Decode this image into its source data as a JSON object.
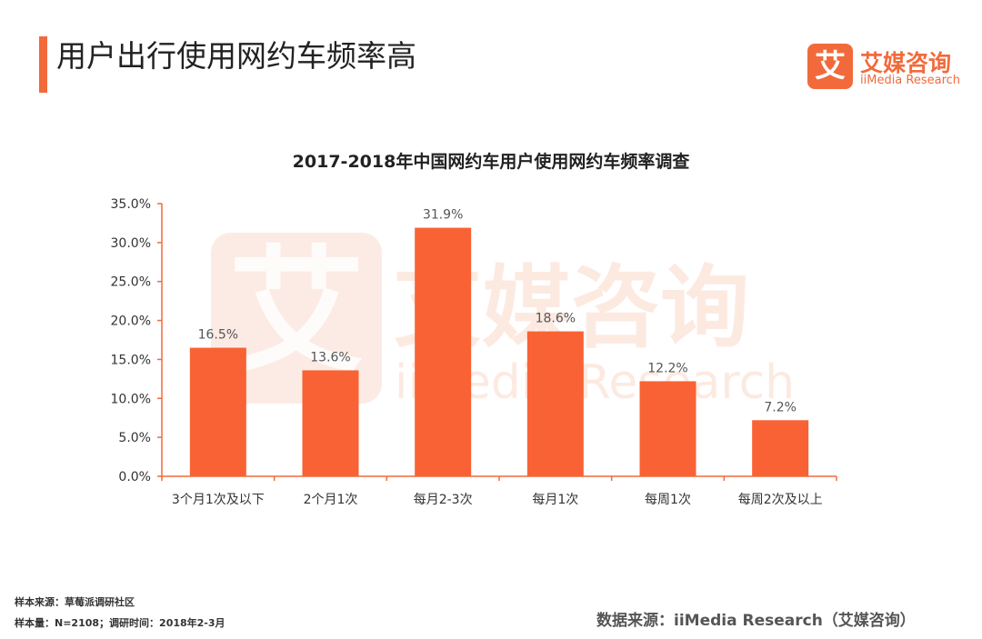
{
  "header": {
    "title": "用户出行使用网约车频率高"
  },
  "logo": {
    "icon_char": "艾",
    "cn": "艾媒咨询",
    "en": "iiMedia Research",
    "watermark_cn": "艾媒咨询",
    "watermark_en": "iiMedia Research"
  },
  "colors": {
    "accent": "#f26a3b",
    "bar": "#f96234",
    "axis": "#f26a3b"
  },
  "chart_data": {
    "type": "bar",
    "title": "2017-2018年中国网约车用户使用网约车频率调查",
    "categories": [
      "3个月1次及以下",
      "2个月1次",
      "每月2-3次",
      "每月1次",
      "每周1次",
      "每周2次及以上"
    ],
    "values": [
      16.5,
      13.6,
      31.9,
      18.6,
      12.2,
      7.2
    ],
    "value_labels": [
      "16.5%",
      "13.6%",
      "31.9%",
      "18.6%",
      "12.2%",
      "7.2%"
    ],
    "ylim": [
      0,
      35
    ],
    "yticks": [
      "0.0%",
      "5.0%",
      "10.0%",
      "15.0%",
      "20.0%",
      "25.0%",
      "30.0%",
      "35.0%"
    ],
    "xlabel": "",
    "ylabel": "",
    "grid": false
  },
  "footer": {
    "sample_source": "样本来源：草莓派调研社区",
    "sample_size": "样本量：N=2108；调研时间：2018年2-3月",
    "data_source": "数据来源：iiMedia Research（艾媒咨询）"
  }
}
